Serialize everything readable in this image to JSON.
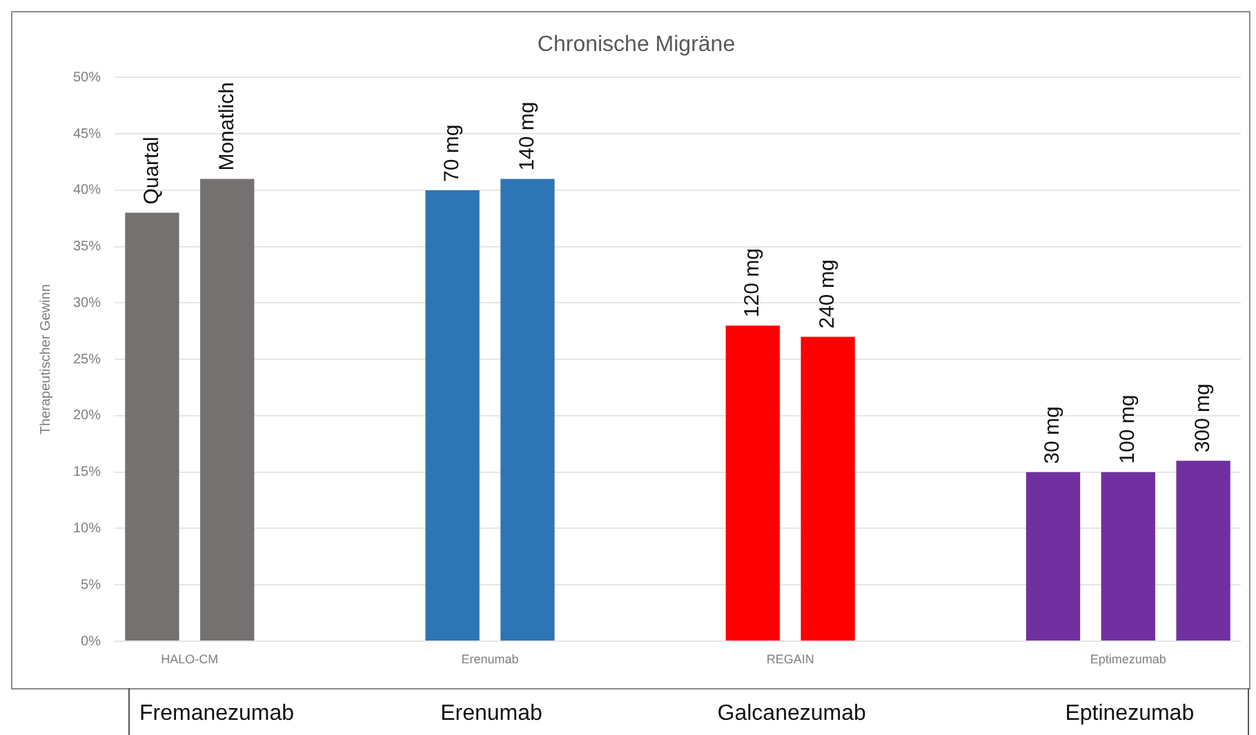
{
  "chart_data": {
    "type": "bar",
    "title": "Chronische Migräne",
    "ylabel": "Therapeutischer Gewinn",
    "categories": [
      "Quartal",
      "Monatlich",
      null,
      null,
      "70 mg",
      "140 mg",
      null,
      null,
      "120 mg",
      "240 mg",
      null,
      null,
      "30 mg",
      "100 mg",
      "300 mg"
    ],
    "values": [
      38,
      41,
      null,
      null,
      40,
      41,
      null,
      null,
      28,
      27,
      null,
      null,
      15,
      15,
      16
    ],
    "colors": [
      "#757171",
      "#757171",
      null,
      null,
      "#2e75b6",
      "#2e75b6",
      null,
      null,
      "#ff0000",
      "#ff0000",
      null,
      null,
      "#7030a0",
      "#7030a0",
      "#7030a0"
    ],
    "ylim": [
      0,
      50
    ],
    "yticks": [
      {
        "value": 0,
        "label": "0%"
      },
      {
        "value": 5,
        "label": "5%"
      },
      {
        "value": 10,
        "label": "10%"
      },
      {
        "value": 15,
        "label": "15%"
      },
      {
        "value": 20,
        "label": "20%"
      },
      {
        "value": 25,
        "label": "25%"
      },
      {
        "value": 30,
        "label": "30%"
      },
      {
        "value": 35,
        "label": "35%"
      },
      {
        "value": 40,
        "label": "40%"
      },
      {
        "value": 45,
        "label": "45%"
      },
      {
        "value": 50,
        "label": "50%"
      }
    ],
    "grid": "y",
    "legend": false,
    "annotations": [
      "HALO-CM",
      "Erenumab",
      "REGAIN",
      "Eptimezumab",
      "Fremanezumab",
      "Erenumab",
      "Galcanezumab",
      "Eptinezumab"
    ]
  }
}
